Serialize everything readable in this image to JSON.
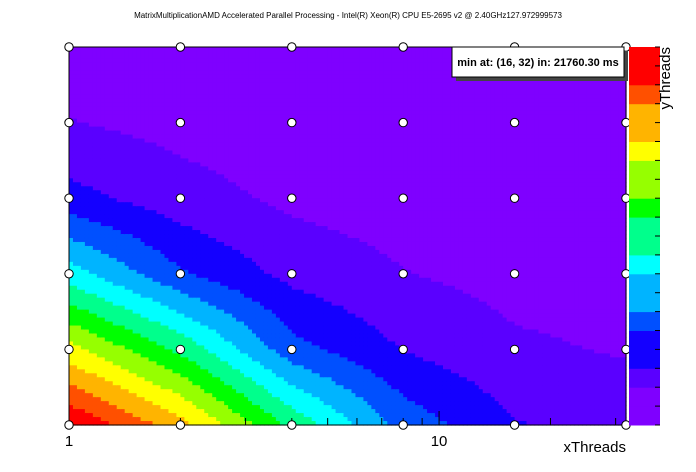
{
  "chart_data": {
    "type": "heatmap",
    "title": "MatrixMultiplicationAMD Accelerated Parallel Processing - Intel(R) Xeon(R) CPU E5-2695 v2 @ 2.40GHz127.972999573",
    "xlabel": "xThreads",
    "ylabel": "yThreads",
    "x_scale": "log",
    "xlim": [
      1,
      32
    ],
    "x_tick_labels": [
      "1",
      "10"
    ],
    "x_values": [
      1,
      2,
      4,
      8,
      16,
      32
    ],
    "y_values": [
      1,
      2,
      4,
      8,
      16,
      32
    ],
    "grid_points": "circle markers at every (x, y) combination",
    "annotation": "min at: (16, 32) in: 21760.30 ms",
    "colorscale": [
      "#7f00ff",
      "#5a00ff",
      "#1400ff",
      "#0050ff",
      "#00b4ff",
      "#00ffff",
      "#00ff8c",
      "#00ff00",
      "#96ff00",
      "#ffff00",
      "#ffb400",
      "#ff5000",
      "#ff0000"
    ],
    "z_relative": [
      [
        1.0,
        0.8,
        0.52,
        0.28,
        0.16,
        0.12
      ],
      [
        0.72,
        0.52,
        0.26,
        0.15,
        0.09,
        0.07
      ],
      [
        0.42,
        0.24,
        0.13,
        0.08,
        0.05,
        0.04
      ],
      [
        0.18,
        0.11,
        0.06,
        0.04,
        0.03,
        0.02
      ],
      [
        0.08,
        0.05,
        0.03,
        0.02,
        0.01,
        0.01
      ],
      [
        0.04,
        0.03,
        0.02,
        0.01,
        0.0,
        0.01
      ]
    ]
  }
}
